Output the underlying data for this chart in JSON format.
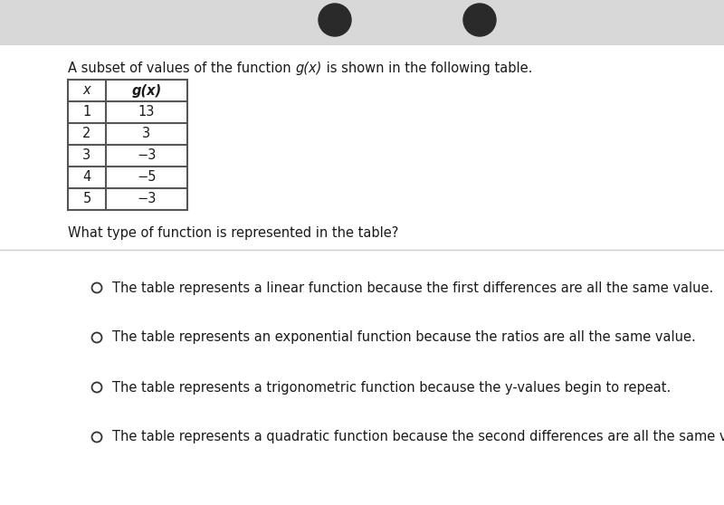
{
  "title_prefix": "A subset of values of the function ",
  "title_gx": "g(x)",
  "title_suffix": " is shown in the following table.",
  "table_x_header": "x",
  "table_gx_header": "g(x)",
  "table_x_values": [
    "1",
    "2",
    "3",
    "4",
    "5"
  ],
  "table_gx_values": [
    "13",
    "3",
    "−3",
    "−5",
    "−3"
  ],
  "question": "What type of function is represented in the table?",
  "options": [
    "The table represents a linear function because the first differences are all the same value.",
    "The table represents an exponential function because the ratios are all the same value.",
    "The table represents a trigonometric function because the y-values begin to repeat.",
    "The table represents a quadratic function because the second differences are all the same value."
  ],
  "top_bar_color": "#e0e0e0",
  "bg_color": "#ffffff",
  "text_color": "#1a1a1a",
  "table_border_color": "#555555",
  "divider_color": "#cccccc",
  "font_size": 10.5,
  "font_size_table": 10.5,
  "circle_color": "#333333"
}
